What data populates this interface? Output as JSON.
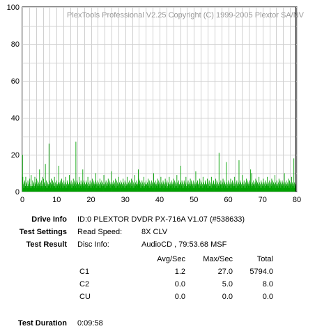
{
  "chart_data": {
    "type": "bar",
    "watermark": "PlexTools Professional V2.25 Copyright (C) 1999-2005 Plextor SA/NV",
    "xlim": [
      0,
      80
    ],
    "ylim": [
      0,
      100
    ],
    "x_ticks": [
      "0",
      "10",
      "20",
      "30",
      "40",
      "50",
      "60",
      "70",
      "80"
    ],
    "y_ticks": [
      "100",
      "80",
      "60",
      "40",
      "20",
      "0"
    ],
    "grid": true,
    "series": [
      {
        "color": "#00a000",
        "values": [
          20,
          8,
          4,
          2,
          5,
          3,
          6,
          2,
          3,
          8,
          4,
          2,
          5,
          3,
          2,
          6,
          4,
          3,
          2,
          5,
          7,
          3,
          2,
          4,
          9,
          3,
          2,
          3,
          6,
          4,
          2,
          5,
          3,
          2,
          8,
          4,
          3,
          5,
          2,
          7,
          4,
          3,
          6,
          2,
          5,
          3,
          4,
          12,
          3,
          2,
          5,
          4,
          6,
          3,
          2,
          8,
          4,
          3,
          7,
          2,
          5,
          3,
          4,
          15,
          3,
          2,
          6,
          4,
          3,
          5,
          2,
          4,
          3,
          26,
          6,
          4,
          3,
          5,
          2,
          7,
          3,
          4,
          2,
          6,
          3,
          5,
          2,
          4,
          8,
          3,
          2,
          5,
          4,
          3,
          6,
          2,
          4,
          3,
          5,
          2,
          14,
          4,
          3,
          5,
          2,
          6,
          4,
          3,
          7,
          2,
          5,
          3,
          4,
          2,
          6,
          4,
          3,
          5,
          2,
          8,
          3,
          4,
          2,
          6,
          3,
          5,
          2,
          4,
          3,
          9,
          2,
          5,
          3,
          4,
          6,
          2,
          4,
          3,
          5,
          2,
          7,
          3,
          4,
          6,
          2,
          5,
          3,
          27,
          4,
          2,
          6,
          3,
          5,
          2,
          4,
          3,
          8,
          2,
          5,
          3,
          4,
          6,
          2,
          4,
          3,
          5,
          12,
          3,
          4,
          6,
          2,
          5,
          3,
          4,
          2,
          6,
          3,
          5,
          2,
          4,
          8,
          3,
          2,
          5,
          4,
          3,
          6,
          2,
          4,
          3,
          5,
          2,
          7,
          3,
          4,
          6,
          2,
          5,
          3,
          4,
          2,
          6,
          10,
          5,
          2,
          4,
          3,
          6,
          2,
          5,
          3,
          4,
          2,
          7,
          3,
          5,
          2,
          4,
          6,
          3,
          2,
          5,
          4,
          3,
          9,
          2,
          4,
          3,
          5,
          2,
          6,
          3,
          4,
          2,
          5,
          3,
          7,
          4,
          2,
          6,
          3,
          5,
          2,
          4,
          3,
          11,
          2,
          5,
          3,
          4,
          6,
          2,
          4,
          3,
          5,
          2,
          7,
          3,
          4,
          6,
          2,
          5,
          3,
          4,
          2,
          8,
          3,
          5,
          2,
          4,
          3,
          6,
          2,
          5,
          3,
          4,
          2,
          7,
          3,
          5,
          2,
          4,
          6,
          3,
          2,
          5,
          4,
          3,
          8,
          2,
          4,
          3,
          5,
          2,
          6,
          3,
          4,
          2,
          5,
          3,
          7,
          4,
          2,
          6,
          3,
          5,
          2,
          4,
          3,
          9,
          2,
          5,
          3,
          4,
          6,
          2,
          4,
          3,
          5,
          12,
          7,
          3,
          4,
          6,
          2,
          5,
          3,
          4,
          2,
          6,
          3,
          5,
          2,
          4,
          8,
          3,
          2,
          5,
          4,
          3,
          6,
          2,
          4,
          3,
          5,
          2,
          7,
          3,
          4,
          6,
          2,
          5,
          3,
          4,
          2,
          6,
          3,
          5,
          2,
          4,
          3,
          10,
          2,
          5,
          3,
          4,
          6,
          2,
          4,
          3,
          5,
          2,
          7,
          3,
          4,
          6,
          2,
          5,
          3,
          4,
          2,
          8,
          3,
          5,
          2,
          4,
          3,
          6,
          2,
          5,
          3,
          4,
          2,
          7,
          3,
          5,
          2,
          4,
          6,
          3,
          2,
          5,
          4,
          3,
          8,
          2,
          4,
          3,
          5,
          2,
          6,
          3,
          4,
          2,
          5,
          3,
          7,
          4,
          2,
          6,
          3,
          5,
          2,
          4,
          3,
          9,
          2,
          5,
          3,
          4,
          6,
          2,
          4,
          3,
          5,
          2,
          14,
          3,
          4,
          6,
          2,
          5,
          3,
          4,
          2,
          6,
          3,
          5,
          2,
          4,
          8,
          3,
          2,
          5,
          4,
          3,
          6,
          2,
          4,
          3,
          5,
          2,
          7,
          3,
          4,
          6,
          2,
          5,
          3,
          4,
          2,
          6,
          3,
          5,
          2,
          4,
          3,
          11,
          2,
          5,
          3,
          4,
          6,
          2,
          4,
          3,
          5,
          2,
          7,
          3,
          4,
          6,
          2,
          5,
          3,
          4,
          2,
          8,
          3,
          5,
          2,
          4,
          3,
          6,
          2,
          5,
          3,
          4,
          2,
          7,
          3,
          5,
          2,
          4,
          6,
          3,
          2,
          5,
          4,
          3,
          8,
          2,
          4,
          3,
          5,
          2,
          6,
          3,
          4,
          2,
          5,
          3,
          7,
          4,
          2,
          6,
          3,
          5,
          2,
          4,
          3,
          21,
          2,
          5,
          3,
          4,
          6,
          2,
          4,
          3,
          5,
          2,
          7,
          3,
          4,
          6,
          2,
          5,
          3,
          4,
          2,
          16,
          3,
          5,
          2,
          4,
          3,
          6,
          2,
          5,
          3,
          4,
          2,
          7,
          3,
          5,
          2,
          4,
          6,
          3,
          2,
          5,
          4,
          3,
          8,
          2,
          4,
          3,
          5,
          2,
          6,
          3,
          4,
          2,
          5,
          3,
          17,
          4,
          2,
          6,
          3,
          5,
          2,
          4,
          3,
          9,
          2,
          5,
          3,
          4,
          6,
          2,
          4,
          3,
          5,
          2,
          7,
          3,
          4,
          6,
          2,
          5,
          3,
          4,
          2,
          6,
          3,
          5,
          12,
          4,
          3,
          10,
          2,
          5,
          3,
          4,
          6,
          2,
          4,
          3,
          5,
          2,
          7,
          3,
          4,
          6,
          2,
          5,
          3,
          4,
          2,
          8,
          3,
          5,
          2,
          4,
          3,
          6,
          2,
          5,
          3,
          4,
          2,
          7,
          3,
          5,
          2,
          4,
          6,
          3,
          2,
          5,
          4,
          3,
          8,
          2,
          4,
          3,
          5,
          2,
          6,
          3,
          4,
          2,
          5,
          3,
          7,
          4,
          2,
          6,
          3,
          5,
          2,
          4,
          3,
          9,
          2,
          5,
          3,
          4,
          6,
          2,
          4,
          3,
          5,
          2,
          7,
          3,
          4,
          6,
          2,
          5,
          3,
          4,
          2,
          6,
          3,
          5,
          2,
          4,
          3,
          10,
          2,
          5,
          3,
          4,
          6,
          2,
          4,
          3,
          5,
          2,
          7,
          3,
          4,
          6,
          2,
          5,
          3,
          4,
          2,
          8,
          3,
          5,
          2,
          4,
          3,
          18,
          2,
          5,
          3,
          4
        ]
      }
    ],
    "cursor_x": 79.6
  },
  "info": {
    "drive_label": "Drive Info",
    "drive_value": "ID:0 PLEXTOR DVDR PX-716A V1.07 (#538633)",
    "settings_label": "Test Settings",
    "settings_key": "Read Speed:",
    "settings_value": "8X CLV",
    "result_label": "Test Result",
    "result_key": "Disc Info:",
    "result_value": "AudioCD , 79:53.68 MSF",
    "table": {
      "headers": [
        "Avg/Sec",
        "Max/Sec",
        "Total"
      ],
      "rows": [
        {
          "name": "C1",
          "avg": "1.2",
          "max": "27.0",
          "total": "5794.0"
        },
        {
          "name": "C2",
          "avg": "0.0",
          "max": "5.0",
          "total": "8.0"
        },
        {
          "name": "CU",
          "avg": "0.0",
          "max": "0.0",
          "total": "0.0"
        }
      ]
    },
    "duration_label": "Test Duration",
    "duration_value": "0:09:58"
  }
}
